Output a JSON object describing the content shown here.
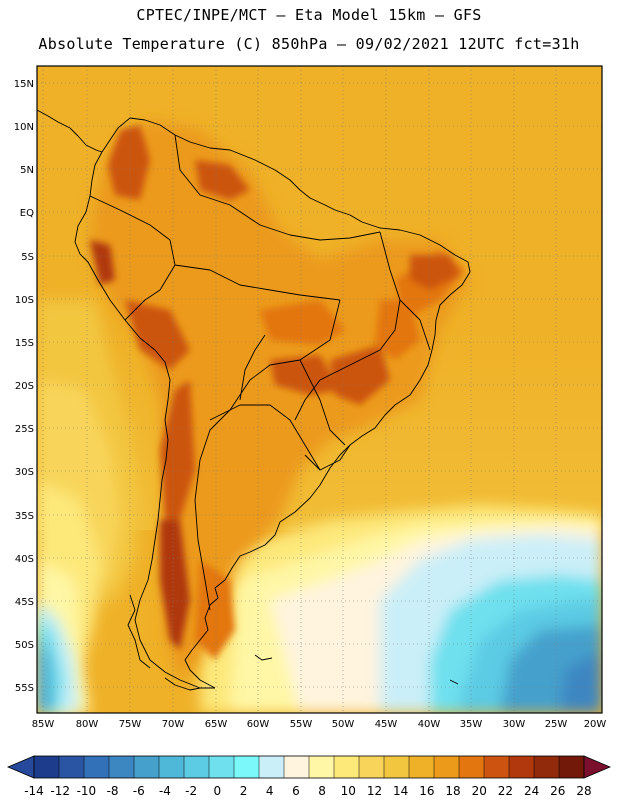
{
  "header": {
    "line1": "CPTEC/INPE/MCT —  Eta Model 15km — GFS",
    "line2": "Absolute Temperature (C) 850hPa — 09/02/2021 12UTC fct=31h"
  },
  "map": {
    "lat_labels": [
      "15N",
      "10N",
      "5N",
      "EQ",
      "5S",
      "10S",
      "15S",
      "20S",
      "25S",
      "30S",
      "35S",
      "40S",
      "45S",
      "50S",
      "55S"
    ],
    "lon_labels": [
      "85W",
      "80W",
      "75W",
      "70W",
      "65W",
      "60W",
      "55W",
      "50W",
      "45W",
      "40W",
      "35W",
      "30W",
      "25W",
      "20W"
    ],
    "region": "South America"
  },
  "colorbar": {
    "labels": [
      "-14",
      "-12",
      "-10",
      "-8",
      "-6",
      "-4",
      "-2",
      "0",
      "2",
      "4",
      "6",
      "8",
      "10",
      "12",
      "14",
      "16",
      "18",
      "20",
      "22",
      "24",
      "26",
      "28"
    ],
    "colors": [
      "#1e3c8c",
      "#2a55a3",
      "#3270b8",
      "#3c86c2",
      "#45a0cc",
      "#4fb7d8",
      "#5ccbe4",
      "#6ee0ee",
      "#7af8fa",
      "#cbeff8",
      "#fff4de",
      "#fff7a6",
      "#fde87a",
      "#f8d55a",
      "#f3c640",
      "#efb128",
      "#ec9a1a",
      "#e3760f",
      "#cc5410",
      "#b0380c",
      "#902a0a",
      "#73190a"
    ],
    "under_color": "#26499c",
    "over_color": "#7b0f2e"
  }
}
